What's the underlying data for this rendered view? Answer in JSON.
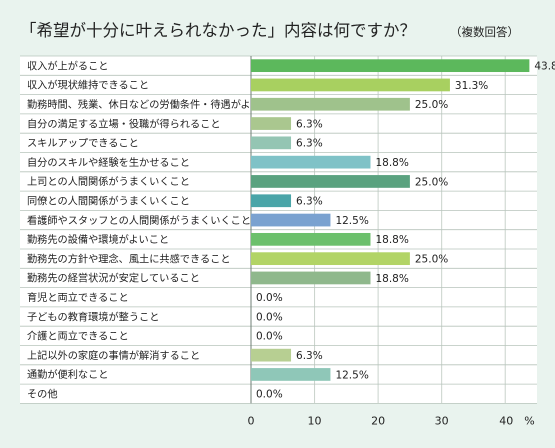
{
  "chart_data": {
    "type": "bar",
    "orientation": "horizontal",
    "title": "「希望が十分に叶えられなかった」内容は何ですか？",
    "subtitle": "（複数回答）",
    "categories": [
      "収入が上がること",
      "収入が現状維持できること",
      "勤務時間、残業、休日などの労働条件・待遇がよいこと",
      "自分の満足する立場・役職が得られること",
      "スキルアップできること",
      "自分のスキルや経験を生かせること",
      "上司との人間関係がうまくいくこと",
      "同僚との人間関係がうまくいくこと",
      "看護師やスタッフとの人間関係がうまくいくこと",
      "勤務先の設備や環境がよいこと",
      "勤務先の方針や理念、風土に共感できること",
      "勤務先の経営状況が安定していること",
      "育児と両立できること",
      "子どもの教育環境が整うこと",
      "介護と両立できること",
      "上記以外の家庭の事情が解消すること",
      "通勤が便利なこと",
      "その他"
    ],
    "values": [
      43.8,
      31.3,
      25.0,
      6.3,
      6.3,
      18.8,
      25.0,
      6.3,
      12.5,
      18.8,
      25.0,
      18.8,
      0.0,
      0.0,
      0.0,
      6.3,
      12.5,
      0.0
    ],
    "value_labels": [
      "43.8%",
      "31.3%",
      "25.0%",
      "6.3%",
      "6.3%",
      "18.8%",
      "25.0%",
      "6.3%",
      "12.5%",
      "18.8%",
      "25.0%",
      "18.8%",
      "0.0%",
      "0.0%",
      "0.0%",
      "6.3%",
      "12.5%",
      "0.0%"
    ],
    "bar_colors": [
      "#5cb85c",
      "#a8d060",
      "#9fc28c",
      "#aac78f",
      "#94c5b3",
      "#7fc2c7",
      "#5aa27f",
      "#4aa5a8",
      "#7aa2d0",
      "#6cc06c",
      "#b2d466",
      "#8fb88c",
      "#9fc28c",
      "#9fc28c",
      "#9fc28c",
      "#b7cf92",
      "#8fc7b8",
      "#9fc28c"
    ],
    "xlim": [
      0,
      45
    ],
    "ticks": [
      0,
      10,
      20,
      30,
      40
    ],
    "tick_labels": [
      "0",
      "10",
      "20",
      "30",
      "40　%"
    ],
    "grid": true
  }
}
